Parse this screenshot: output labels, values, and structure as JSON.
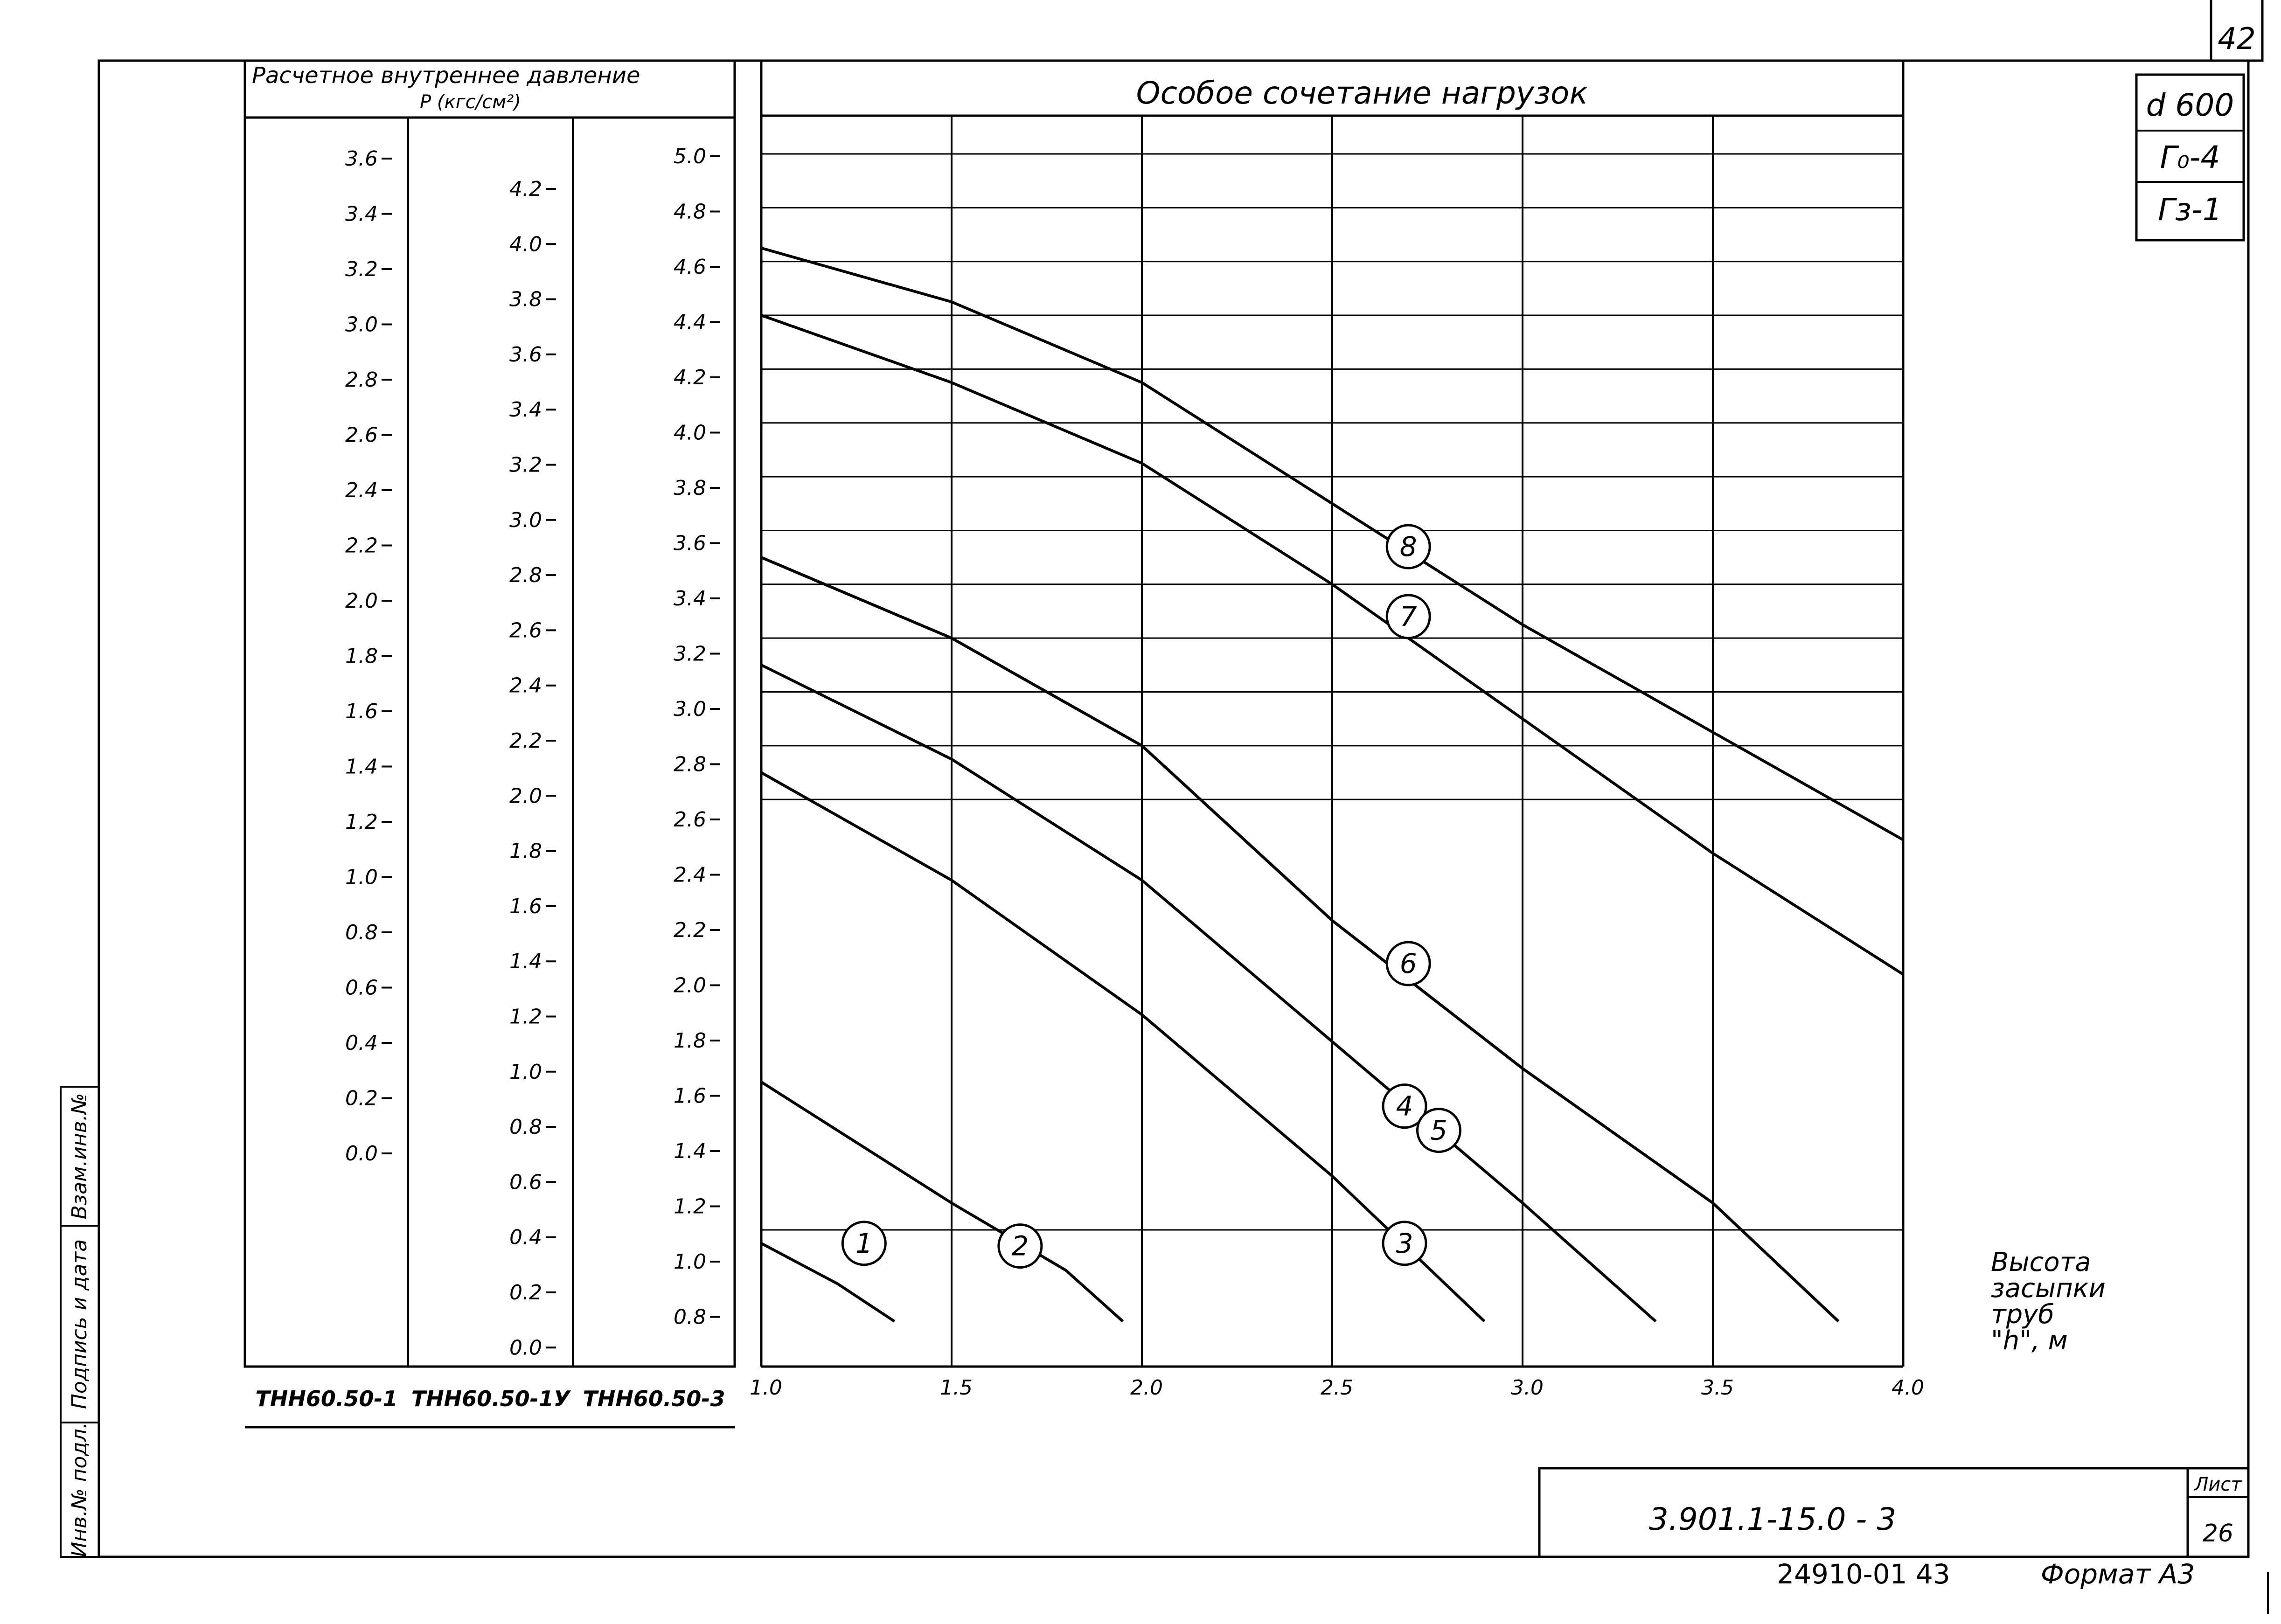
{
  "sheet": {
    "page_number": "42",
    "side_box": [
      "d 600",
      "Г₀-4",
      "Гз-1"
    ],
    "left_margin_labels": [
      "Взам.инв.№",
      "Подпись и дата",
      "Инв.№ подл."
    ],
    "doc_code": "3.901.1-15.0 - 3",
    "sheet_label": "Лист",
    "sheet_number": "26",
    "footer_code": "24910-01 43",
    "format_label": "Формат А3"
  },
  "pressure_panel": {
    "title_line1": "Расчетное внутреннее давление",
    "title_line2": "P (кгс/см²)",
    "columns": [
      {
        "label": "ТНН60.50-1",
        "ticks": [
          "3.6",
          "3.4",
          "3.2",
          "3.0",
          "2.8",
          "2.6",
          "2.4",
          "2.2",
          "2.0",
          "1.8",
          "1.6",
          "1.4",
          "1.2",
          "1.0",
          "0.8",
          "0.6",
          "0.4",
          "0.2",
          "0.0"
        ],
        "values": [
          3.6,
          3.4,
          3.2,
          3.0,
          2.8,
          2.6,
          2.4,
          2.2,
          2.0,
          1.8,
          1.6,
          1.4,
          1.2,
          1.0,
          0.8,
          0.6,
          0.4,
          0.2,
          0.0
        ]
      },
      {
        "label": "ТНН60.50-1У",
        "ticks": [
          "4.2",
          "4.0",
          "3.8",
          "3.6",
          "3.4",
          "3.2",
          "3.0",
          "2.8",
          "2.6",
          "2.4",
          "2.2",
          "2.0",
          "1.8",
          "1.6",
          "1.4",
          "1.2",
          "1.0",
          "0.8",
          "0.6",
          "0.4",
          "0.2",
          "0.0"
        ],
        "values": [
          4.2,
          4.0,
          3.8,
          3.6,
          3.4,
          3.2,
          3.0,
          2.8,
          2.6,
          2.4,
          2.2,
          2.0,
          1.8,
          1.6,
          1.4,
          1.2,
          1.0,
          0.8,
          0.6,
          0.4,
          0.2,
          0.0
        ]
      },
      {
        "label": "ТНН60.50-3",
        "ticks": [
          "5.0",
          "4.8",
          "4.6",
          "4.4",
          "4.2",
          "4.0",
          "3.8",
          "3.6",
          "3.4",
          "3.2",
          "3.0",
          "2.8",
          "2.6",
          "2.4",
          "2.2",
          "2.0",
          "1.8",
          "1.6",
          "1.4",
          "1.2",
          "1.0",
          "0.8"
        ],
        "values": [
          5.0,
          4.8,
          4.6,
          4.4,
          4.2,
          4.0,
          3.8,
          3.6,
          3.4,
          3.2,
          3.0,
          2.8,
          2.6,
          2.4,
          2.2,
          2.0,
          1.8,
          1.6,
          1.4,
          1.2,
          1.0,
          0.8
        ]
      }
    ]
  },
  "chart_data": {
    "type": "line",
    "title": "Особое сочетание нагрузок",
    "xlabel": "Высота засыпки труб \"h\", м",
    "ylabel": "",
    "xlim": [
      1.0,
      4.0
    ],
    "ylim": [
      0.7,
      5.0
    ],
    "x_ticks": [
      "1.0",
      "1.5",
      "2.0",
      "2.5",
      "3.0",
      "3.5",
      "4.0"
    ],
    "grid": true,
    "series": [
      {
        "name": "1",
        "x": [
          1.0,
          1.2,
          1.35
        ],
        "y": [
          0.95,
          0.8,
          0.66
        ]
      },
      {
        "name": "2",
        "x": [
          1.0,
          1.5,
          1.8,
          1.95
        ],
        "y": [
          1.55,
          1.1,
          0.85,
          0.66
        ]
      },
      {
        "name": "3",
        "x": [
          1.0,
          1.5,
          2.0,
          2.5,
          2.9
        ],
        "y": [
          2.7,
          2.3,
          1.8,
          1.2,
          0.66
        ]
      },
      {
        "name": "4",
        "x": [
          1.0,
          1.5,
          2.0,
          2.5,
          3.0,
          3.35
        ],
        "y": [
          3.1,
          2.75,
          2.3,
          1.7,
          1.1,
          0.66
        ]
      },
      {
        "name": "5",
        "x": [
          1.0,
          1.5,
          2.0,
          2.5,
          3.0,
          3.5,
          3.83
        ],
        "y": [
          3.5,
          3.2,
          2.8,
          2.15,
          1.6,
          1.1,
          0.66
        ]
      },
      {
        "name": "6",
        "x": [
          1.0,
          1.5,
          2.0,
          2.5,
          3.0,
          3.5,
          3.83
        ],
        "y": [
          3.5,
          3.2,
          2.8,
          2.15,
          1.6,
          1.1,
          0.66
        ]
      },
      {
        "name": "7",
        "x": [
          1.0,
          1.5,
          2.0,
          2.5,
          3.0,
          3.5,
          4.0
        ],
        "y": [
          4.4,
          4.15,
          3.85,
          3.4,
          2.9,
          2.4,
          1.95
        ]
      },
      {
        "name": "8",
        "x": [
          1.0,
          1.5,
          2.0,
          2.5,
          3.0,
          3.5,
          4.0
        ],
        "y": [
          4.65,
          4.45,
          4.15,
          3.7,
          3.25,
          2.85,
          2.45
        ]
      }
    ],
    "series_labels": [
      {
        "name": "1",
        "x": 1.27,
        "y": 0.95
      },
      {
        "name": "2",
        "x": 1.68,
        "y": 0.94
      },
      {
        "name": "3",
        "x": 2.69,
        "y": 0.95
      },
      {
        "name": "4",
        "x": 2.69,
        "y": 1.46
      },
      {
        "name": "5",
        "x": 2.78,
        "y": 1.37
      },
      {
        "name": "6",
        "x": 2.7,
        "y": 1.99
      },
      {
        "name": "7",
        "x": 2.7,
        "y": 3.28
      },
      {
        "name": "8",
        "x": 2.7,
        "y": 3.54
      }
    ]
  }
}
